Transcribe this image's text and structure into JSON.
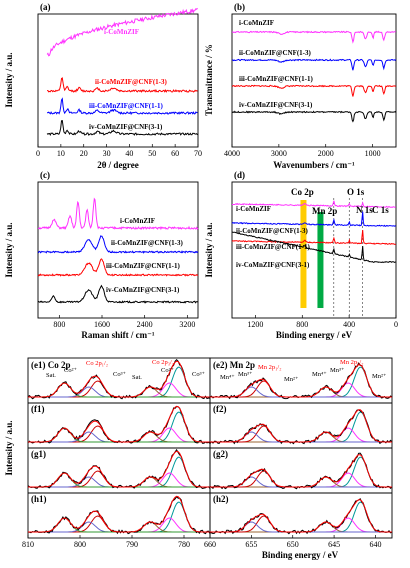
{
  "chart_data": [
    {
      "panel": "(a)",
      "type": "line",
      "xlabel": "2θ / degree",
      "ylabel": "Intensity / a.u.",
      "xlim": [
        0,
        70
      ],
      "xticks": [
        0,
        10,
        20,
        30,
        40,
        50,
        60,
        70
      ],
      "series": [
        {
          "name": "i-CoMnZIF",
          "color": "#ff33ff",
          "kind": "xrd_amorphous"
        },
        {
          "name": "ii-CoMnZIF@CNF(1-3)",
          "color": "#ff0000",
          "kind": "xrd"
        },
        {
          "name": "iii-CoMnZIF@CNF(1-1)",
          "color": "#0000ff",
          "kind": "xrd"
        },
        {
          "name": "iv-CoMnZIF@CNF(3-1)",
          "color": "#000000",
          "kind": "xrd"
        }
      ]
    },
    {
      "panel": "(b)",
      "type": "line",
      "xlabel": "Wavenumbers / cm⁻¹",
      "ylabel": "Transmittance / %",
      "xlim": [
        4000,
        500
      ],
      "xticks": [
        4000,
        3000,
        2000,
        1000
      ],
      "series": [
        {
          "name": "i-CoMnZIF",
          "color": "#ff33ff"
        },
        {
          "name": "ii-CoMnZIF@CNF(1-3)",
          "color": "#0000ff"
        },
        {
          "name": "iii-CoMnZIF@CNF(1-1)",
          "color": "#ff0000"
        },
        {
          "name": "iv-CoMnZIF@CNF(3-1)",
          "color": "#000000"
        }
      ]
    },
    {
      "panel": "(c)",
      "type": "line",
      "xlabel": "Raman shift / cm⁻¹",
      "ylabel": "Intensity / a.u.",
      "xlim": [
        400,
        3400
      ],
      "xticks": [
        800,
        1600,
        2400,
        3200
      ],
      "series": [
        {
          "name": "i-CoMnZIF",
          "color": "#ff33ff"
        },
        {
          "name": "ii-CoMnZIF@CNF(1-3)",
          "color": "#0000ff"
        },
        {
          "name": "iii-CoMnZIF@CNF(1-1)",
          "color": "#ff0000"
        },
        {
          "name": "iv-CoMnZIF@CNF(3-1)",
          "color": "#000000"
        }
      ]
    },
    {
      "panel": "(d)",
      "type": "line",
      "xlabel": "Binding energy / eV",
      "ylabel": "Intensity / a.u.",
      "xlim": [
        1400,
        0
      ],
      "xticks": [
        1200,
        800,
        400,
        0
      ],
      "annotations": [
        "Co 2p",
        "Mn 2p",
        "O 1s",
        "N 1s",
        "C 1s"
      ],
      "series": [
        {
          "name": "i-CoMnZIF",
          "color": "#ff33ff"
        },
        {
          "name": "ii-CoMnZIF@CNF(1-3)",
          "color": "#0000ff"
        },
        {
          "name": "iii-CoMnZIF@CNF(1-1)",
          "color": "#ff0000"
        },
        {
          "name": "iv-CoMnZIF@CNF(3-1)",
          "color": "#000000"
        }
      ]
    },
    {
      "panel": "(e1)-(h1)",
      "type": "line",
      "title": "(e1) Co 2p",
      "xlabel": "",
      "ylabel": "Intensity / a.u.",
      "xlim": [
        810,
        775
      ],
      "xticks": [
        810,
        800,
        790,
        780
      ],
      "subpanels": [
        "(e1)",
        "(f1)",
        "(g1)",
        "(h1)"
      ],
      "annotations": [
        "Sat.",
        "Co²⁺",
        "Co³⁺",
        "Sat.",
        "Co²⁺",
        "Co³⁺",
        "Co 2p₁/₂",
        "Co 2p₃/₂"
      ],
      "peaks": [
        {
          "center": 781.0,
          "color": "#009999"
        },
        {
          "center": 782.8,
          "color": "#ff33ff"
        },
        {
          "center": 786.5,
          "color": "#996633"
        },
        {
          "center": 796.6,
          "color": "#cc0000"
        },
        {
          "center": 798.3,
          "color": "#6666cc"
        },
        {
          "center": 803.0,
          "color": "#339933"
        }
      ]
    },
    {
      "panel": "(e2)-(h2)",
      "type": "line",
      "title": "(e2) Mn 2p",
      "xlabel": "Binding energy / eV",
      "ylabel": "",
      "xlim": [
        660,
        638
      ],
      "xticks": [
        660,
        655,
        650,
        645,
        640
      ],
      "subpanels": [
        "(e2)",
        "(f2)",
        "(g2)",
        "(h2)"
      ],
      "annotations": [
        "Mn⁴⁺",
        "Mn³⁺",
        "Mn²⁺",
        "Mn⁴⁺",
        "Mn³⁺",
        "Mn²⁺",
        "Mn 2p₁/₂",
        "Mn 2p₃/₂"
      ],
      "peaks": [
        {
          "center": 641.8,
          "color": "#009999"
        },
        {
          "center": 643.3,
          "color": "#ff33ff"
        },
        {
          "center": 646.0,
          "color": "#996633"
        },
        {
          "center": 653.5,
          "color": "#cc0000"
        },
        {
          "center": 655.0,
          "color": "#6666cc"
        }
      ]
    }
  ]
}
